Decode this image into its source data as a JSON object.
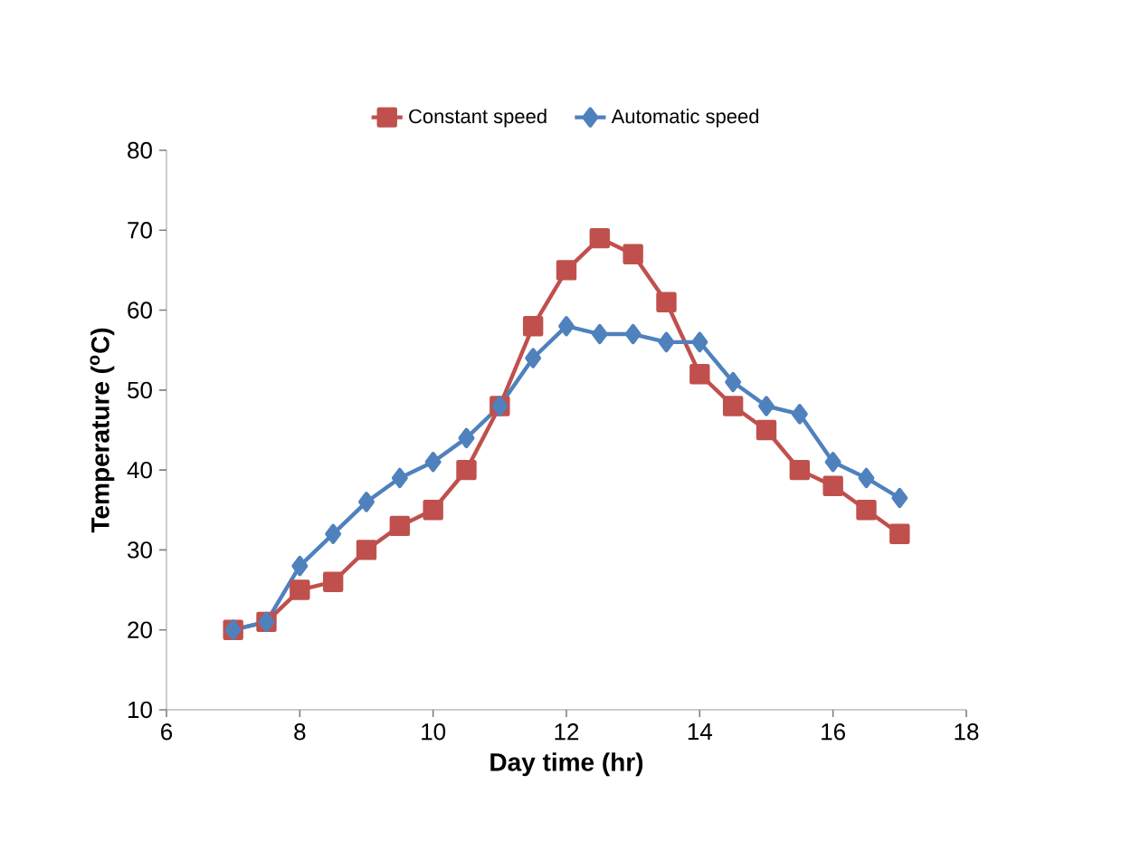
{
  "chart_data": {
    "type": "line",
    "xlabel": "Day time (hr)",
    "ylabel": "Temperature ($^{o}$C)",
    "x": [
      7,
      7.5,
      8,
      8.5,
      9,
      9.5,
      10,
      10.5,
      11,
      11.5,
      12,
      12.5,
      13,
      13.5,
      14,
      14.5,
      15,
      15.5,
      16,
      16.5,
      17
    ],
    "series": [
      {
        "name": "Constant speed",
        "color": "#c0504d",
        "marker": "square",
        "values": [
          20,
          21,
          25,
          26,
          30,
          33,
          35,
          40,
          48,
          58,
          65,
          69,
          67,
          61,
          52,
          48,
          45,
          40,
          38,
          35,
          32
        ]
      },
      {
        "name": "Automatic speed",
        "color": "#4f81bd",
        "marker": "diamond",
        "values": [
          20,
          21,
          28,
          32,
          36,
          39,
          41,
          44,
          48,
          54,
          58,
          57,
          57,
          56,
          56,
          51,
          48,
          47,
          41,
          39,
          36.5
        ]
      }
    ],
    "xlim": [
      6,
      18
    ],
    "xticks": [
      6,
      8,
      10,
      12,
      14,
      16,
      18
    ],
    "ylim": [
      10,
      80
    ],
    "yticks": [
      10,
      20,
      30,
      40,
      50,
      60,
      70,
      80
    ],
    "grid": false,
    "legend": "top",
    "line_style": "solid"
  }
}
